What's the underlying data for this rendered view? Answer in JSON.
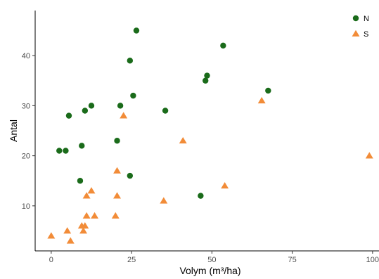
{
  "chart_data": {
    "type": "scatter",
    "title": "",
    "xlabel": "Volym (m³/ha)",
    "ylabel": "Antal",
    "xlim": [
      -5,
      102
    ],
    "ylim": [
      1,
      49
    ],
    "x_ticks": [
      0,
      25,
      50,
      75,
      100
    ],
    "x_tick_labels": [
      "0",
      "25",
      "50",
      "75",
      "100"
    ],
    "y_ticks": [
      10,
      20,
      30,
      40
    ],
    "y_tick_labels": [
      "10",
      "20",
      "30",
      "40"
    ],
    "grid": false,
    "legend_position": "top-right",
    "series": [
      {
        "name": "N",
        "marker": "circle",
        "color": "#1a6b1a",
        "points": [
          [
            26.5,
            45
          ],
          [
            53.5,
            42
          ],
          [
            24.5,
            39
          ],
          [
            48.5,
            36
          ],
          [
            48,
            35
          ],
          [
            67.5,
            33
          ],
          [
            25.5,
            32
          ],
          [
            12.5,
            30
          ],
          [
            21.5,
            30
          ],
          [
            10.5,
            29
          ],
          [
            35.5,
            29
          ],
          [
            5.5,
            28
          ],
          [
            20.5,
            23
          ],
          [
            9.5,
            22
          ],
          [
            2.5,
            21
          ],
          [
            4.5,
            21
          ],
          [
            24.5,
            16
          ],
          [
            9,
            15
          ],
          [
            46.5,
            12
          ]
        ]
      },
      {
        "name": "S",
        "marker": "triangle",
        "color": "#f28c38",
        "points": [
          [
            65.5,
            31
          ],
          [
            22.5,
            28
          ],
          [
            41,
            23
          ],
          [
            99,
            20
          ],
          [
            20.5,
            17
          ],
          [
            54,
            14
          ],
          [
            12.5,
            13
          ],
          [
            11,
            12
          ],
          [
            20.5,
            12
          ],
          [
            35,
            11
          ],
          [
            11,
            8
          ],
          [
            13.5,
            8
          ],
          [
            20,
            8
          ],
          [
            9.5,
            6
          ],
          [
            10.5,
            6
          ],
          [
            10,
            5
          ],
          [
            5,
            5
          ],
          [
            0,
            4
          ],
          [
            6,
            3
          ]
        ]
      }
    ]
  }
}
